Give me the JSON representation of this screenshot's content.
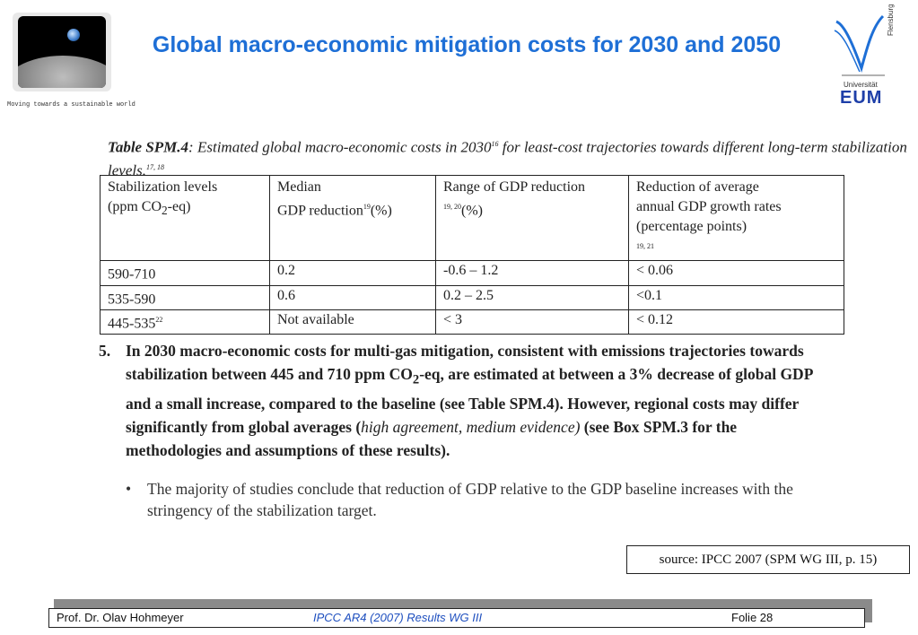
{
  "header": {
    "tagline": "Moving towards a sustainable world",
    "title": "Global macro-economic mitigation costs for 2030 and 2050",
    "logo_right": {
      "vertical_text": "Flensburg",
      "university": "Universität",
      "acronym": "EUM"
    }
  },
  "table": {
    "caption_label": "Table SPM.4",
    "caption_sep": ":",
    "caption_text": " Estimated global macro-economic costs in 2030",
    "caption_sup1": "16",
    "caption_text2": " for least-cost trajectories towards different long-term stabilization levels.",
    "caption_sup2": "17, 18",
    "headers": [
      {
        "line1": "Stabilization levels",
        "line2": "(ppm CO",
        "sub": "2",
        "line2_end": "-eq)"
      },
      {
        "line1": "Median",
        "line2": "GDP reduction",
        "sup": "19",
        "line2_end": "(%)"
      },
      {
        "line1": "Range of GDP reduction",
        "sup": "19, 20",
        "line2_end": "(%)"
      },
      {
        "line1": "Reduction of average",
        "line2": "annual GDP growth rates",
        "line3": "(percentage points)",
        "sup": "19, 21"
      }
    ],
    "rows": [
      {
        "level": "590-710",
        "level_sup": "",
        "median": "0.2",
        "range": "-0.6 – 1.2",
        "growth": "< 0.06"
      },
      {
        "level": "535-590",
        "level_sup": "",
        "median": "0.6",
        "range": "0.2 – 2.5",
        "growth": "<0.1"
      },
      {
        "level": "445-535",
        "level_sup": "22",
        "median": "Not available",
        "range": "< 3",
        "growth": "< 0.12"
      }
    ]
  },
  "paragraph": {
    "number": "5.",
    "text_a": "In 2030 macro-economic costs for multi-gas mitigation, consistent with emissions trajectories towards stabilization between 445 and 710 ppm CO",
    "sub": "2",
    "text_b": "-eq, are estimated at between a 3% decrease of global GDP and a small increase, compared to the baseline (see Table SPM.4). However, regional costs may differ significantly from global averages (",
    "italic": "high agreement, medium evidence)",
    "text_c": " (see Box SPM.3 for the methodologies and assumptions of these results)."
  },
  "bullet": {
    "symbol": "•",
    "text": "The majority of studies conclude that reduction of GDP relative to the GDP baseline increases with the stringency of the stabilization target."
  },
  "source": "source: IPCC 2007 (SPM WG III, p. 15)",
  "footer": {
    "author": "Prof. Dr. Olav Hohmeyer",
    "reference": "IPCC AR4 (2007) Results WG III",
    "page": "Folie 28"
  }
}
